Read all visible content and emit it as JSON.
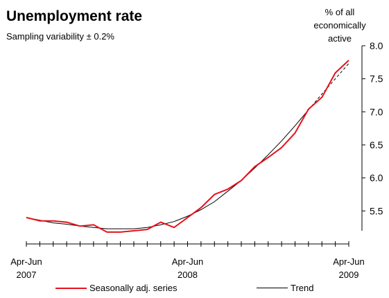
{
  "chart_data": {
    "type": "line",
    "title": "Unemployment rate",
    "subtitle": "Sampling variability ± 0.2%",
    "ylabel": "% of all economically active",
    "ylabel_lines": [
      "% of all",
      "economically",
      "active"
    ],
    "ylim": [
      5.2,
      8.0
    ],
    "yticks": [
      5.5,
      6.0,
      6.5,
      7.0,
      7.5,
      8.0
    ],
    "ytick_labels": [
      "5.5",
      "6.0",
      "6.5",
      "7.0",
      "7.5",
      "8.0"
    ],
    "x_periods": 24,
    "xtick_labels": [
      {
        "index": 0,
        "line1": "Apr-Jun",
        "line2": "2007"
      },
      {
        "index": 12,
        "line1": "Apr-Jun",
        "line2": "2008"
      },
      {
        "index": 24,
        "line1": "Apr-Jun",
        "line2": "2009"
      }
    ],
    "series": [
      {
        "name": "Seasonally adj. series",
        "color": "#e8101a",
        "values": [
          5.4,
          5.35,
          5.35,
          5.33,
          5.27,
          5.29,
          5.18,
          5.18,
          5.2,
          5.22,
          5.33,
          5.25,
          5.4,
          5.55,
          5.75,
          5.83,
          5.96,
          6.17,
          6.31,
          6.46,
          6.68,
          7.04,
          7.22,
          7.59,
          7.78
        ]
      },
      {
        "name": "Trend",
        "color": "#000000",
        "values": [
          5.4,
          5.36,
          5.32,
          5.3,
          5.27,
          5.25,
          5.23,
          5.23,
          5.23,
          5.25,
          5.29,
          5.34,
          5.42,
          5.52,
          5.64,
          5.8,
          5.96,
          6.15,
          6.35,
          6.56,
          6.79,
          7.03,
          7.27,
          7.5,
          7.73
        ]
      }
    ]
  }
}
